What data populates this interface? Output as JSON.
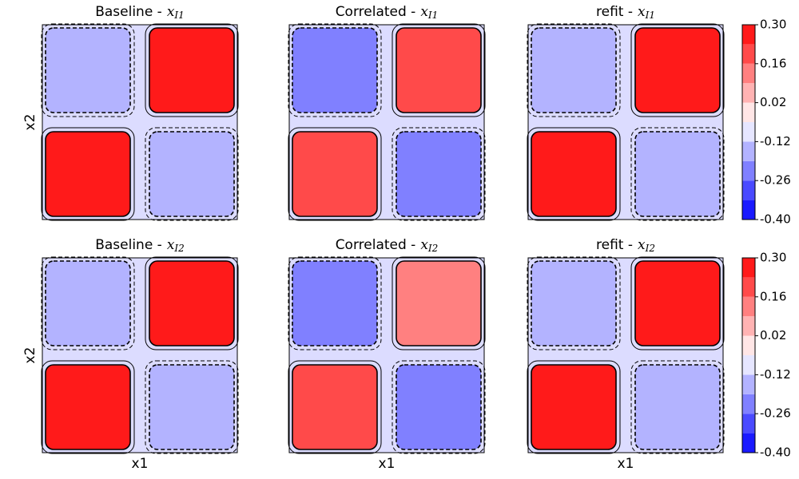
{
  "chart_data": [
    {
      "type": "contour",
      "ylabel": "x2",
      "panels": [
        {
          "title": "Baseline -",
          "var": "x",
          "sub": "I1",
          "quadrants": [
            -0.19,
            0.23,
            0.23,
            -0.19
          ]
        },
        {
          "title": "Correlated -",
          "var": "x",
          "sub": "I1",
          "quadrants": [
            -0.26,
            0.16,
            0.16,
            -0.26
          ]
        },
        {
          "title": "refit -",
          "var": "x",
          "sub": "I1",
          "quadrants": [
            -0.19,
            0.23,
            0.23,
            -0.19
          ]
        }
      ],
      "levels": [
        -0.4,
        -0.33,
        -0.26,
        -0.19,
        -0.12,
        -0.05,
        0.02,
        0.09,
        0.16,
        0.23,
        0.3
      ],
      "colors": [
        "#1a1aff",
        "#4a4aff",
        "#8080ff",
        "#b3b3ff",
        "#e6e6ff",
        "#ffe6e6",
        "#ffb3b3",
        "#ff8080",
        "#ff4a4a",
        "#ff1a1a"
      ],
      "cticks": [
        {
          "value": 0.3,
          "label": "0.30"
        },
        {
          "value": 0.16,
          "label": "0.16"
        },
        {
          "value": 0.02,
          "label": "0.02"
        },
        {
          "value": -0.12,
          "label": "-0.12"
        },
        {
          "value": -0.26,
          "label": "-0.26"
        },
        {
          "value": -0.4,
          "label": "-0.40"
        }
      ]
    },
    {
      "type": "contour",
      "ylabel": "x2",
      "xlabel": "x1",
      "panels": [
        {
          "title": "Baseline -",
          "var": "x",
          "sub": "I2",
          "quadrants": [
            -0.19,
            0.23,
            0.23,
            -0.19
          ]
        },
        {
          "title": "Correlated -",
          "var": "x",
          "sub": "I2",
          "quadrants": [
            -0.26,
            0.09,
            0.16,
            -0.26
          ]
        },
        {
          "title": "refit -",
          "var": "x",
          "sub": "I2",
          "quadrants": [
            -0.19,
            0.23,
            0.23,
            -0.19
          ]
        }
      ],
      "levels": [
        -0.4,
        -0.33,
        -0.26,
        -0.19,
        -0.12,
        -0.05,
        0.02,
        0.09,
        0.16,
        0.23,
        0.3
      ],
      "colors": [
        "#1a1aff",
        "#4a4aff",
        "#8080ff",
        "#b3b3ff",
        "#e6e6ff",
        "#ffe6e6",
        "#ffb3b3",
        "#ff8080",
        "#ff4a4a",
        "#ff1a1a"
      ],
      "cticks": [
        {
          "value": 0.3,
          "label": "0.30"
        },
        {
          "value": 0.16,
          "label": "0.16"
        },
        {
          "value": 0.02,
          "label": "0.02"
        },
        {
          "value": -0.12,
          "label": "-0.12"
        },
        {
          "value": -0.26,
          "label": "-0.26"
        },
        {
          "value": -0.4,
          "label": "-0.40"
        }
      ]
    }
  ]
}
